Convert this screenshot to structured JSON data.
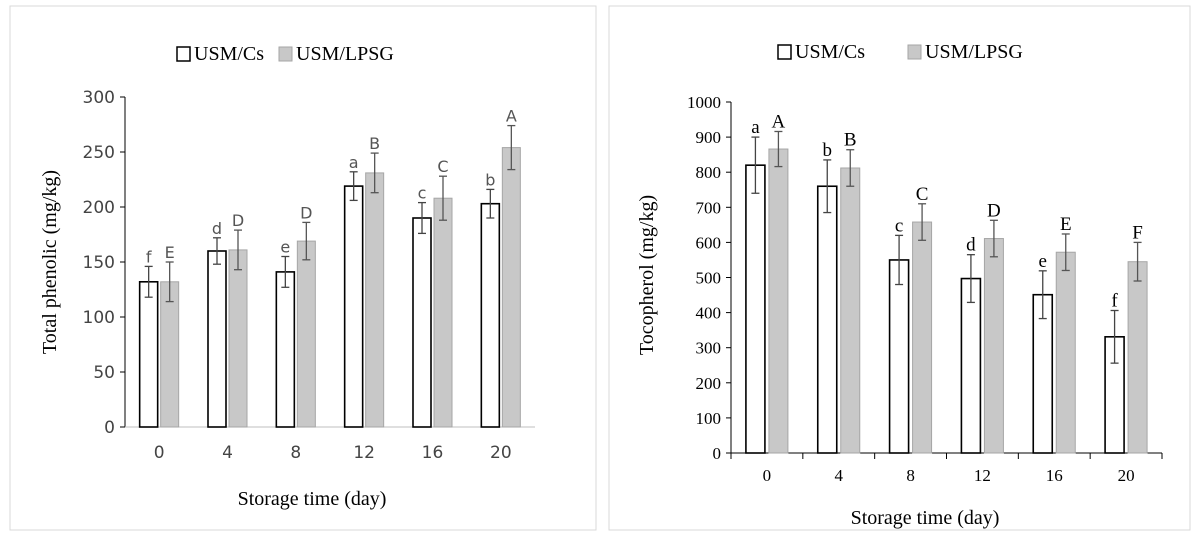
{
  "chart_data": [
    {
      "type": "bar",
      "xlabel": "Storage time (day)",
      "ylabel": "Total phenolic (mg/kg)",
      "ylim": [
        0,
        300
      ],
      "ytick_step": 50,
      "categories": [
        "0",
        "4",
        "8",
        "12",
        "16",
        "20"
      ],
      "legend_position": "top",
      "grid": false,
      "series": [
        {
          "name": "USM/Cs",
          "color": "#ffffff",
          "values": [
            132,
            160,
            141,
            219,
            190,
            203
          ],
          "errors": [
            14,
            12,
            14,
            13,
            14,
            13
          ],
          "letters": [
            "f",
            "d",
            "e",
            "a",
            "c",
            "b"
          ]
        },
        {
          "name": "USM/LPSG",
          "color": "#c8c8c8",
          "values": [
            132,
            161,
            169,
            231,
            208,
            254
          ],
          "errors": [
            18,
            18,
            17,
            18,
            20,
            20
          ],
          "letters": [
            "E",
            "D",
            "D",
            "B",
            "C",
            "A"
          ]
        }
      ]
    },
    {
      "type": "bar",
      "xlabel": "Storage time (day)",
      "ylabel": "Tocopherol (mg/kg)",
      "ylim": [
        0,
        1000
      ],
      "ytick_step": 100,
      "categories": [
        "0",
        "4",
        "8",
        "12",
        "16",
        "20"
      ],
      "legend_position": "top",
      "grid": false,
      "series": [
        {
          "name": "USM/Cs",
          "color": "#ffffff",
          "values": [
            820,
            760,
            550,
            497,
            451,
            331
          ],
          "errors": [
            80,
            75,
            70,
            68,
            68,
            75
          ],
          "letters": [
            "a",
            "b",
            "c",
            "d",
            "e",
            "f"
          ]
        },
        {
          "name": "USM/LPSG",
          "color": "#c8c8c8",
          "values": [
            866,
            812,
            658,
            611,
            572,
            545
          ],
          "errors": [
            50,
            52,
            52,
            52,
            52,
            55
          ],
          "letters": [
            "A",
            "B",
            "C",
            "D",
            "E",
            "F"
          ]
        }
      ]
    }
  ]
}
